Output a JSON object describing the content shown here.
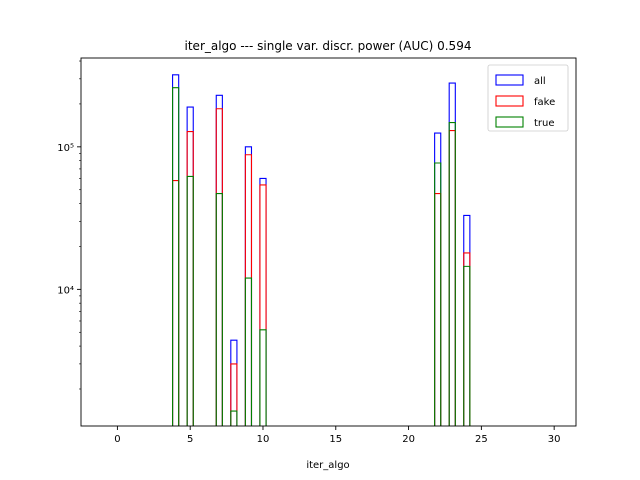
{
  "chart_data": {
    "type": "bar",
    "histtype": "step",
    "title": "iter_algo --- single var. discr. power (AUC) 0.594",
    "xlabel": "iter_algo",
    "ylabel": "",
    "xlim": [
      -2.5,
      31.5
    ],
    "ylim_log": [
      1100,
      420000
    ],
    "yscale": "log",
    "xticks": [
      0,
      5,
      10,
      15,
      20,
      25,
      30
    ],
    "xtick_labels": [
      "0",
      "5",
      "10",
      "15",
      "20",
      "25",
      "30"
    ],
    "yticks": [
      10000,
      100000
    ],
    "ytick_labels": [
      "10⁴",
      "10⁵"
    ],
    "legend_position": "top-right",
    "bin_width": 0.42,
    "categories": [
      4,
      5,
      7,
      8,
      9,
      10,
      22,
      23,
      24
    ],
    "series": [
      {
        "name": "all",
        "color": "#0000ff",
        "values": [
          320000,
          190000,
          230000,
          4400,
          100000,
          60000,
          125000,
          280000,
          33000
        ]
      },
      {
        "name": "fake",
        "color": "#ff0000",
        "values": [
          58000,
          128000,
          185000,
          3000,
          88000,
          54000,
          47000,
          130000,
          18000
        ]
      },
      {
        "name": "true",
        "color": "#008000",
        "values": [
          260000,
          62000,
          47000,
          1400,
          12000,
          5200,
          77000,
          148000,
          14500
        ]
      }
    ]
  }
}
